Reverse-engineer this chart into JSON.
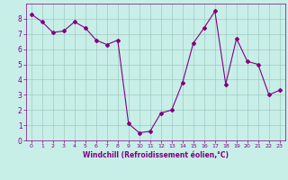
{
  "x": [
    0,
    1,
    2,
    3,
    4,
    5,
    6,
    7,
    8,
    9,
    10,
    11,
    12,
    13,
    14,
    15,
    16,
    17,
    18,
    19,
    20,
    21,
    22,
    23
  ],
  "y": [
    8.3,
    7.8,
    7.1,
    7.2,
    7.8,
    7.4,
    6.6,
    6.3,
    6.6,
    1.1,
    0.5,
    0.6,
    1.8,
    2.0,
    3.8,
    6.4,
    7.4,
    8.5,
    3.7,
    6.7,
    5.2,
    5.0,
    3.0,
    3.3
  ],
  "line_color": "#800080",
  "marker": "D",
  "marker_size": 2.0,
  "background_color": "#c8eee8",
  "grid_color": "#a0c8c0",
  "xlabel": "Windchill (Refroidissement éolien,°C)",
  "xlabel_color": "#800080",
  "tick_color": "#800080",
  "xlim": [
    -0.5,
    23.5
  ],
  "ylim": [
    0,
    9
  ],
  "yticks": [
    0,
    1,
    2,
    3,
    4,
    5,
    6,
    7,
    8
  ],
  "xticks": [
    0,
    1,
    2,
    3,
    4,
    5,
    6,
    7,
    8,
    9,
    10,
    11,
    12,
    13,
    14,
    15,
    16,
    17,
    18,
    19,
    20,
    21,
    22,
    23
  ],
  "figsize": [
    3.2,
    2.0
  ],
  "dpi": 100
}
